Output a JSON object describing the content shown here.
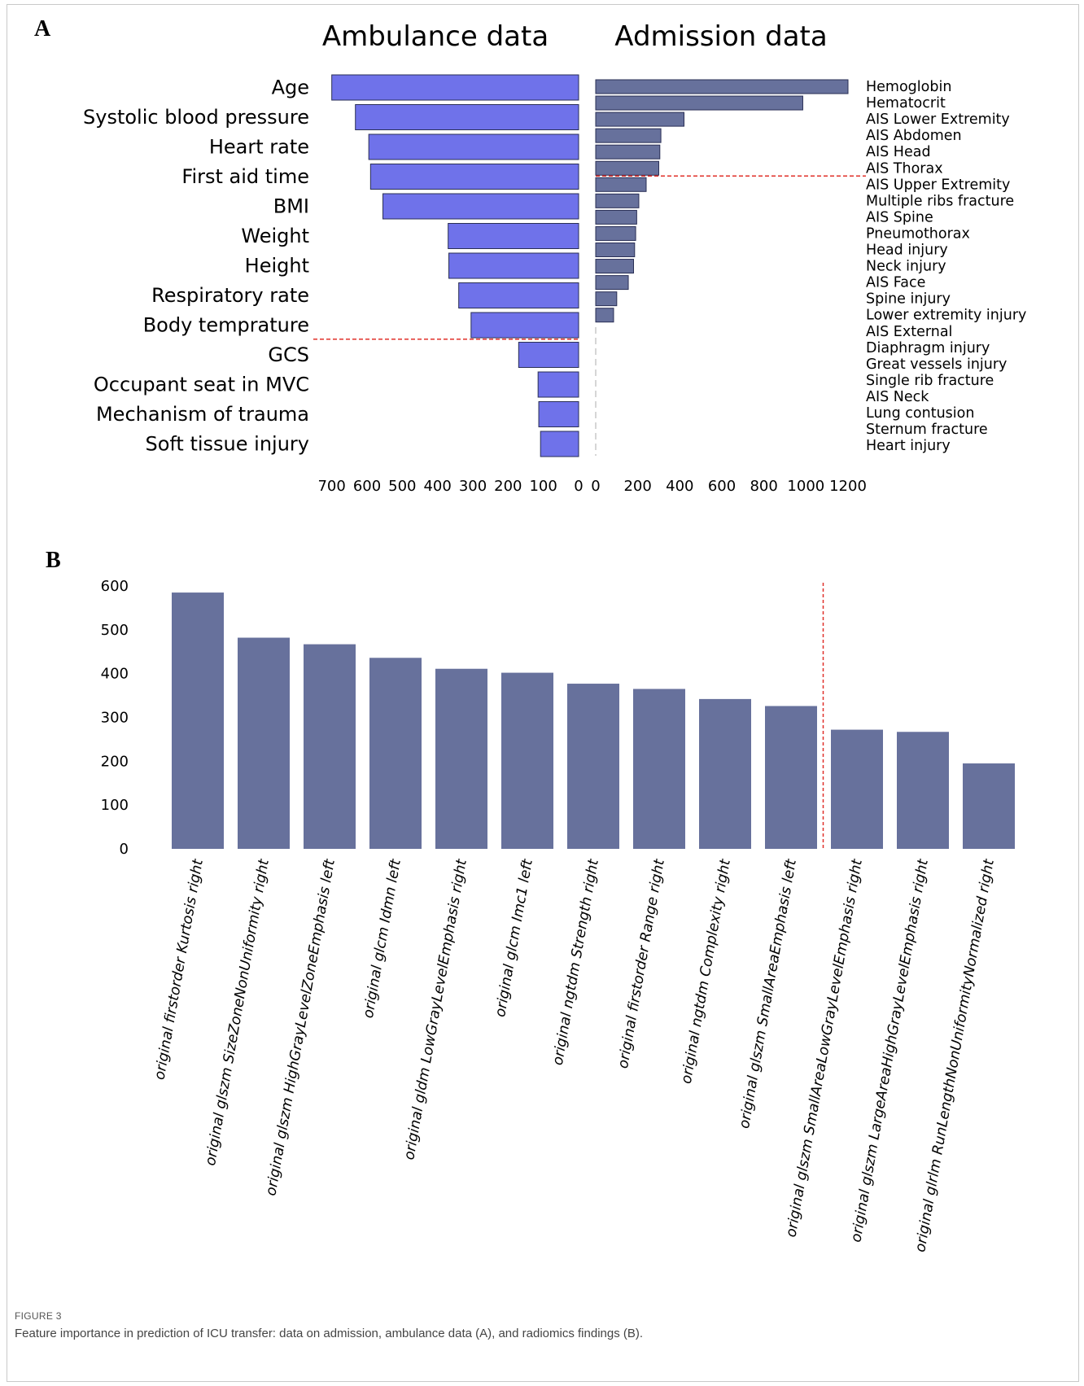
{
  "figure": {
    "caption_label": "FIGURE 3",
    "caption_text": "Feature importance in prediction of ICU transfer: data on admission, ambulance data (A), and radiomics findings (B)."
  },
  "colors": {
    "ambulance_bar": "#6f72ea",
    "admission_bar": "#67719c",
    "radiomics_bar": "#67719c",
    "cutoff_line": "#e0302a",
    "bar_edge": "#2a2f55"
  },
  "chart_data": [
    {
      "panel": "A",
      "type": "bar",
      "orientation": "horizontal",
      "title": "Ambulance data",
      "axis_direction": "reversed",
      "xlim": [
        0,
        750
      ],
      "xticks": [
        0,
        100,
        200,
        300,
        400,
        500,
        600,
        700
      ],
      "categories": [
        "Age",
        "Systolic blood pressure",
        "Heart rate",
        "First aid time",
        "BMI",
        "Weight",
        "Height",
        "Respiratory rate",
        "Body temprature",
        "GCS",
        "Occupant seat in MVC",
        "Mechanism of trauma",
        "Soft tissue injury"
      ],
      "values": [
        700,
        633,
        595,
        590,
        555,
        370,
        368,
        340,
        305,
        170,
        115,
        113,
        108
      ],
      "cutoff_after_index": 8
    },
    {
      "panel": "A",
      "type": "bar",
      "orientation": "horizontal",
      "title": "Admission data",
      "xlim": [
        0,
        1250
      ],
      "xticks": [
        0,
        200,
        400,
        600,
        800,
        1000,
        1200
      ],
      "categories": [
        "Hemoglobin",
        "Hematocrit",
        "AIS Lower Extremity",
        "AIS Abdomen",
        "AIS Head",
        "AIS Thorax",
        "AIS Upper Extremity",
        "Multiple ribs fracture",
        "AIS Spine",
        "Pneumothorax",
        "Head injury",
        "Neck injury",
        "AIS Face",
        "Spine injury",
        "Lower extremity injury",
        "AIS External",
        "Diaphragm injury",
        "Great vessels injury",
        "Single rib fracture",
        "AIS Neck",
        "Lung contusion",
        "Sternum fracture",
        "Heart injury"
      ],
      "values": [
        1200,
        985,
        420,
        310,
        305,
        300,
        240,
        205,
        195,
        190,
        185,
        180,
        155,
        100,
        85,
        0,
        0,
        0,
        0,
        0,
        0,
        0,
        0
      ],
      "cutoff_after_index": 5
    },
    {
      "panel": "B",
      "type": "bar",
      "orientation": "vertical",
      "title": "",
      "ylim": [
        0,
        600
      ],
      "yticks": [
        0,
        100,
        200,
        300,
        400,
        500,
        600
      ],
      "categories": [
        "original firstorder Kurtosis right",
        "original glszm SizeZoneNonUniformity right",
        "original glszm HighGrayLevelZoneEmphasis left",
        "original glcm Idmn left",
        "original gldm LowGrayLevelEmphasis right",
        "original glcm Imc1 left",
        "original ngtdm Strength right",
        "original firstorder Range right",
        "original ngtdm Complexity right",
        "original glszm SmallAreaEmphasis left",
        "original glszm SmallAreaLowGrayLevelEmphasis right",
        "original glszm LargeAreaHighGrayLevelEmphasis right",
        "original glrlm RunLengthNonUniformityNormalized right"
      ],
      "values": [
        585,
        482,
        467,
        436,
        411,
        402,
        377,
        365,
        342,
        326,
        272,
        267,
        195
      ],
      "cutoff_after_index": 9
    }
  ],
  "panels": {
    "a_label": "A",
    "b_label": "B"
  }
}
